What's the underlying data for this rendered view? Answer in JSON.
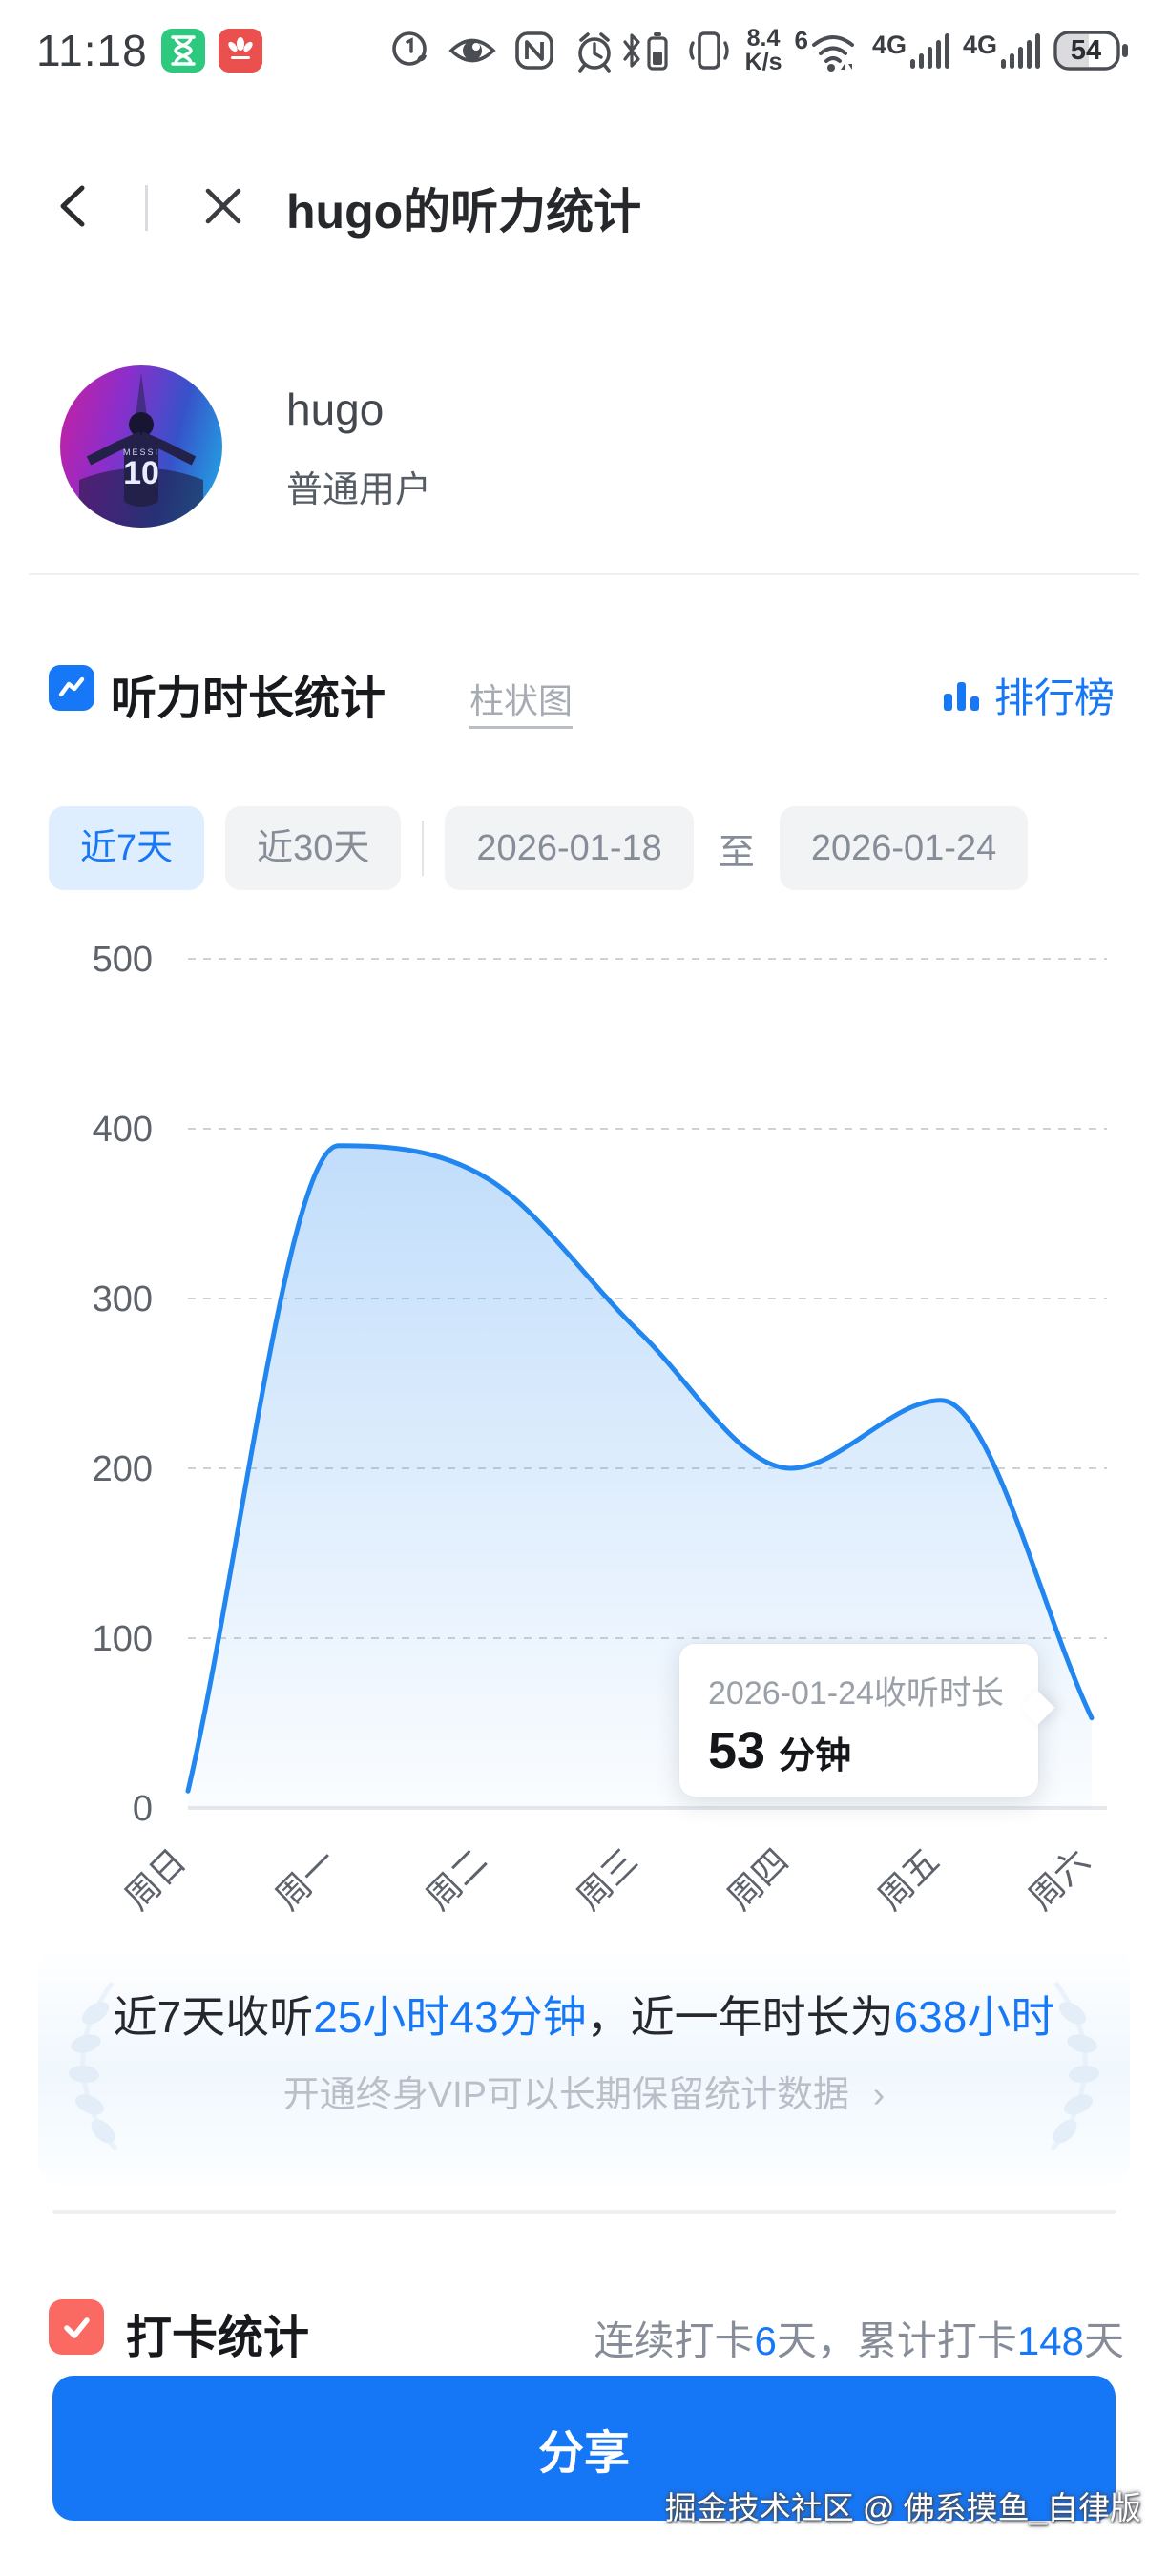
{
  "status_bar": {
    "time": "11:18",
    "net_speed": "8.4",
    "net_speed_unit": "K/s",
    "wifi_badge": "6",
    "cell_1": "4G",
    "cell_2": "4G",
    "battery_level": "54"
  },
  "header": {
    "title": "hugo的听力统计"
  },
  "profile": {
    "name": "hugo",
    "role": "普通用户",
    "avatar_number": "10",
    "avatar_name": "MESSI"
  },
  "stats_header": {
    "title": "听力时长统计",
    "chart_type_link": "柱状图",
    "ranking": "排行榜"
  },
  "filters": {
    "last7": "近7天",
    "last30": "近30天",
    "date_start": "2026-01-18",
    "to": "至",
    "date_end": "2026-01-24"
  },
  "chart_data": {
    "type": "area",
    "title": "听力时长统计",
    "x": [
      "周日",
      "周一",
      "周二",
      "周三",
      "周四",
      "周五",
      "周六"
    ],
    "series": [
      {
        "name": "收听时长(分钟)",
        "values": [
          10,
          390,
          370,
          280,
          200,
          240,
          53
        ]
      }
    ],
    "ylim": [
      0,
      500
    ],
    "yticks": [
      0,
      100,
      200,
      300,
      400,
      500
    ],
    "grid": "horizontal-dashed",
    "smooth": true,
    "legend_position": "none",
    "line_color": "#2186f0",
    "fill_top": "rgba(33,134,240,0.28)",
    "fill_bottom": "rgba(33,134,240,0.02)",
    "highlighted_point": {
      "x": "周六",
      "date": "2026-01-24",
      "value": 53,
      "unit": "分钟"
    }
  },
  "tooltip": {
    "title": "2026-01-24收听时长",
    "value": "53",
    "unit": "分钟"
  },
  "summary": {
    "part1": "近7天收听",
    "highlight1": "25小时43分钟",
    "part2": "，近一年时长为",
    "highlight2": "638小时",
    "vip_hint": "开通终身VIP可以长期保留统计数据",
    "vip_arrow": "›"
  },
  "checkin": {
    "title": "打卡统计",
    "part1": "连续打卡",
    "streak": "6",
    "part2": "天，累计打卡",
    "total": "148",
    "part3": "天"
  },
  "share_button": "分享",
  "watermark": "掘金技术社区 @ 佛系摸鱼_自律版",
  "colors": {
    "accent_blue": "#1677f7",
    "chart_line": "#2186f0",
    "active_tab_bg": "#dfeefe",
    "inactive_tab_bg": "#f2f3f5",
    "checkin_red": "#fa6a63",
    "share_button_bg": "#1677f6",
    "huawei_red": "#e9504e",
    "hourglass_green": "#2dc97e"
  }
}
